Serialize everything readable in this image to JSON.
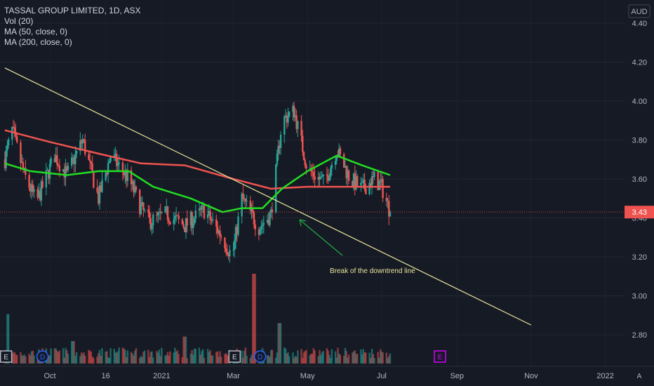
{
  "chart_data": {
    "type": "candlestick",
    "title": "TASSAL GROUP LIMITED, 1D, ASX",
    "legend": [
      "Vol (20)",
      "MA (50, close, 0)",
      "MA (200, close, 0)"
    ],
    "currency": "AUD",
    "last_price": "3.43",
    "y_ticks": [
      "4.40",
      "4.20",
      "4.00",
      "3.80",
      "3.60",
      "3.40",
      "3.20",
      "3.00",
      "2.80"
    ],
    "x_ticks": [
      "Oct",
      "16",
      "2021",
      "Mar",
      "May",
      "Jul",
      "Sep",
      "Nov",
      "2022"
    ],
    "ylim": [
      2.7,
      4.45
    ],
    "annotation": "Break of the downtrend line",
    "event_markers": [
      "E",
      "D",
      "E",
      "D",
      "E"
    ],
    "scale_button": "A",
    "colors": {
      "up": "#26a69a",
      "down": "#ef5350",
      "ma50": "#22dd22",
      "ma200": "#ef5350",
      "trendline": "#e8e59a",
      "background": "#161a25"
    },
    "price_path": [
      [
        "2020-08-25",
        3.7
      ],
      [
        "2020-08-31",
        3.85
      ],
      [
        "2020-09-10",
        3.62
      ],
      [
        "2020-09-20",
        3.48
      ],
      [
        "2020-10-05",
        3.72
      ],
      [
        "2020-10-15",
        3.62
      ],
      [
        "2020-10-28",
        3.8
      ],
      [
        "2020-11-10",
        3.5
      ],
      [
        "2020-11-20",
        3.72
      ],
      [
        "2020-12-05",
        3.6
      ],
      [
        "2020-12-15",
        3.45
      ],
      [
        "2020-12-22",
        3.38
      ],
      [
        "2021-01-05",
        3.42
      ],
      [
        "2021-01-20",
        3.36
      ],
      [
        "2021-02-05",
        3.44
      ],
      [
        "2021-02-20",
        3.3
      ],
      [
        "2021-02-28",
        3.2
      ],
      [
        "2021-03-08",
        3.5
      ],
      [
        "2021-03-22",
        3.35
      ],
      [
        "2021-04-01",
        3.42
      ],
      [
        "2021-04-10",
        3.9
      ],
      [
        "2021-04-20",
        3.95
      ],
      [
        "2021-05-01",
        3.65
      ],
      [
        "2021-05-15",
        3.58
      ],
      [
        "2021-05-25",
        3.75
      ],
      [
        "2021-06-05",
        3.6
      ],
      [
        "2021-06-15",
        3.55
      ],
      [
        "2021-06-25",
        3.6
      ],
      [
        "2021-07-01",
        3.56
      ],
      [
        "2021-07-08",
        3.43
      ]
    ],
    "ma50": [
      [
        "2020-08-25",
        3.68
      ],
      [
        "2020-09-15",
        3.64
      ],
      [
        "2020-10-15",
        3.62
      ],
      [
        "2020-11-10",
        3.64
      ],
      [
        "2020-12-05",
        3.64
      ],
      [
        "2020-12-25",
        3.56
      ],
      [
        "2021-01-25",
        3.5
      ],
      [
        "2021-02-20",
        3.43
      ],
      [
        "2021-03-08",
        3.45
      ],
      [
        "2021-03-25",
        3.45
      ],
      [
        "2021-04-10",
        3.55
      ],
      [
        "2021-05-01",
        3.64
      ],
      [
        "2021-05-25",
        3.72
      ],
      [
        "2021-06-15",
        3.67
      ],
      [
        "2021-07-08",
        3.62
      ]
    ],
    "ma200": [
      [
        "2020-08-25",
        3.85
      ],
      [
        "2020-10-01",
        3.79
      ],
      [
        "2020-11-10",
        3.73
      ],
      [
        "2020-12-15",
        3.68
      ],
      [
        "2021-01-20",
        3.67
      ],
      [
        "2021-03-01",
        3.6
      ],
      [
        "2021-04-01",
        3.55
      ],
      [
        "2021-05-01",
        3.56
      ],
      [
        "2021-06-01",
        3.56
      ],
      [
        "2021-07-08",
        3.56
      ]
    ],
    "trendline": [
      [
        "2020-08-25",
        4.17
      ],
      [
        "2021-11-01",
        2.85
      ]
    ],
    "volume_spikes": [
      [
        "2020-08-28",
        0.55
      ],
      [
        "2020-10-20",
        0.25
      ],
      [
        "2021-01-20",
        0.3
      ],
      [
        "2021-03-18",
        1.0
      ],
      [
        "2021-04-08",
        0.45
      ]
    ]
  }
}
